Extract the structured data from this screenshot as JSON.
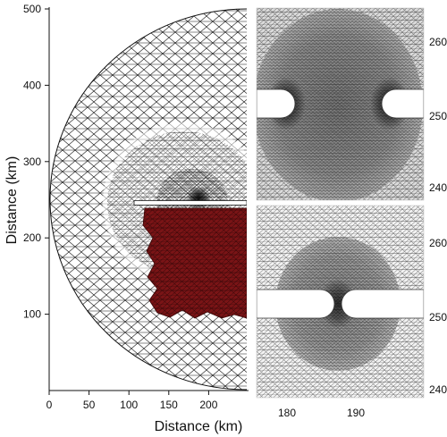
{
  "main_panel": {
    "xlabel": "Distance (km)",
    "ylabel": "Distance (km)",
    "xticks": [
      "0",
      "50",
      "100",
      "150",
      "200"
    ],
    "yticks": [
      "100",
      "200",
      "300",
      "400",
      "500"
    ],
    "xlim": [
      0,
      250
    ],
    "ylim": [
      0,
      500
    ],
    "highlight_color": "#7a1416"
  },
  "zoom_top": {
    "yticks": [
      "260",
      "250",
      "240"
    ]
  },
  "zoom_bottom": {
    "yticks": [
      "260",
      "250",
      "240"
    ],
    "xticks": [
      "180",
      "190"
    ]
  },
  "mesh_color": "#000000"
}
